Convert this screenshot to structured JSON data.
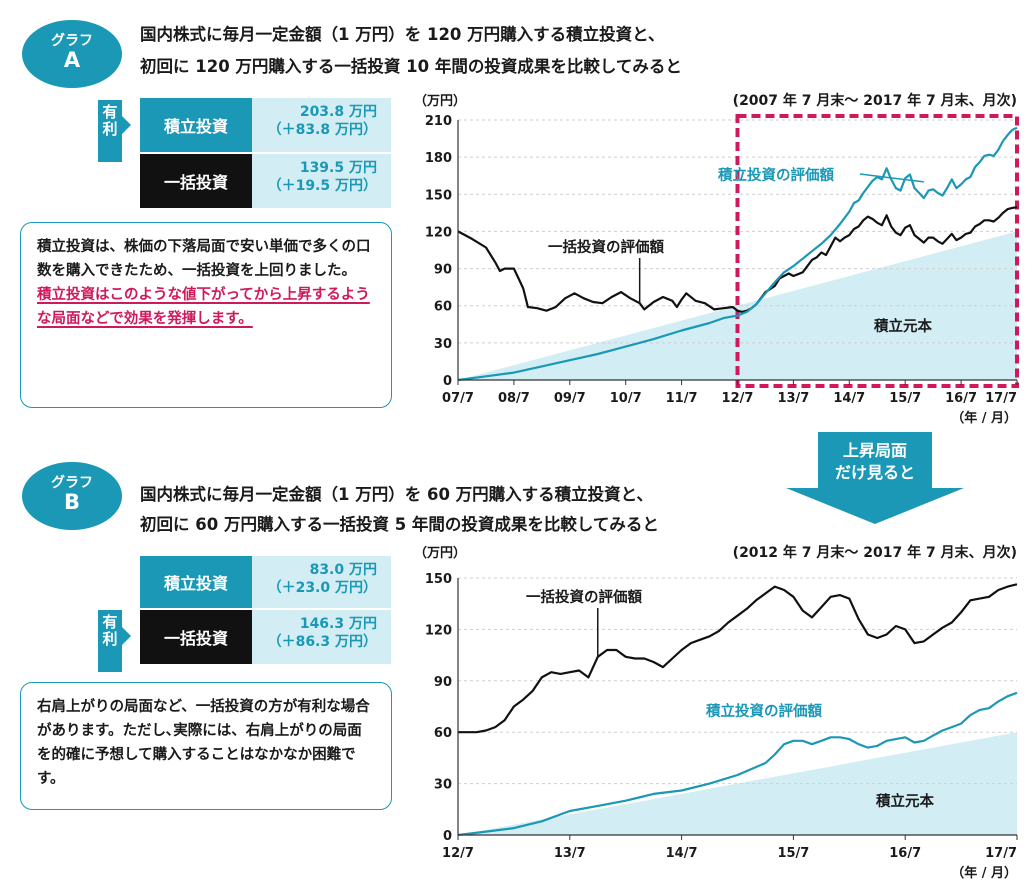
{
  "graph_a": {
    "badge_top": "グラフ",
    "badge_letter": "A",
    "heading_line1": "国内株式に毎月一定金額（1 万円）を 120 万円購入する積立投資と、",
    "heading_line2": "初回に 120 万円購入する一括投資 10 年間の投資成果を比較してみると",
    "advantage_label": "有利",
    "rows": [
      {
        "label": "積立投資",
        "value": "203.8 万円",
        "gain": "（＋83.8 万円）"
      },
      {
        "label": "一括投資",
        "value": "139.5 万円",
        "gain": "（＋19.5 万円）"
      }
    ],
    "note_plain": "積立投資は、株価の下落局面で安い単価で多くの口数を購入できたため、一括投資を上回りました。",
    "note_highlight": "積立投資はこのような値下がってから上昇するような局面などで効果を発揮します。"
  },
  "graph_b": {
    "badge_top": "グラフ",
    "badge_letter": "B",
    "heading_line1": "国内株式に毎月一定金額（1 万円）を 60 万円購入する積立投資と、",
    "heading_line2": "初回に 60 万円購入する一括投資 5 年間の投資成果を比較してみると",
    "advantage_label": "有利",
    "rows": [
      {
        "label": "積立投資",
        "value": "83.0 万円",
        "gain": "（＋23.0 万円）"
      },
      {
        "label": "一括投資",
        "value": "146.3 万円",
        "gain": "（＋86.3 万円）"
      }
    ],
    "note_text": "右肩上がりの局面など、一括投資の方が有利な場合があります。ただし､実際には、右肩上がりの局面を的確に予想して購入することはなかなか困難です。"
  },
  "transition": {
    "line1": "上昇局面",
    "line2": "だけ見ると"
  },
  "colors": {
    "accent": "#1a98b6",
    "highlight": "#d0195c",
    "area": "#d2edf3",
    "lump": "#111111"
  },
  "chart_data": [
    {
      "type": "line",
      "period": "(2007 年 7 月末～ 2017 年 7 月末、月次)",
      "ylabel": "（万円）",
      "xunit": "（年 / 月）",
      "ylim": [
        0,
        210
      ],
      "yticks": [
        0,
        30,
        60,
        90,
        120,
        150,
        180,
        210
      ],
      "xlim": [
        0,
        120
      ],
      "categories": [
        "07/7",
        "08/7",
        "09/7",
        "10/7",
        "11/7",
        "12/7",
        "13/7",
        "14/7",
        "15/7",
        "16/7",
        "17/7"
      ],
      "highlight_range": [
        60,
        120
      ],
      "annotations": {
        "lump": "一括投資の評価額",
        "dca": "積立投資の評価額",
        "principal": "積立元本"
      },
      "series": [
        {
          "name": "一括投資の評価額",
          "points": [
            [
              0,
              120
            ],
            [
              3,
              114
            ],
            [
              6,
              107
            ],
            [
              8,
              95
            ],
            [
              9,
              88
            ],
            [
              10,
              90
            ],
            [
              12,
              90
            ],
            [
              13,
              82
            ],
            [
              14,
              74
            ],
            [
              15,
              59
            ],
            [
              17,
              58
            ],
            [
              19,
              56
            ],
            [
              21,
              59
            ],
            [
              23,
              66
            ],
            [
              25,
              70
            ],
            [
              27,
              66
            ],
            [
              29,
              63
            ],
            [
              31,
              62
            ],
            [
              33,
              67
            ],
            [
              35,
              71
            ],
            [
              37,
              66
            ],
            [
              39,
              62
            ],
            [
              40,
              57
            ],
            [
              42,
              63
            ],
            [
              44,
              67
            ],
            [
              46,
              64
            ],
            [
              47,
              59
            ],
            [
              48,
              65
            ],
            [
              49,
              70
            ],
            [
              51,
              64
            ],
            [
              53,
              62
            ],
            [
              55,
              57
            ],
            [
              57,
              58
            ],
            [
              59,
              59
            ],
            [
              60,
              56
            ],
            [
              61,
              55
            ],
            [
              62,
              56
            ],
            [
              63,
              58
            ],
            [
              64,
              61
            ],
            [
              65,
              66
            ],
            [
              66,
              71
            ],
            [
              68,
              76
            ],
            [
              69,
              82
            ],
            [
              71,
              86
            ],
            [
              72,
              84
            ],
            [
              74,
              87
            ],
            [
              75,
              92
            ],
            [
              76,
              97
            ],
            [
              77,
              99
            ],
            [
              78,
              103
            ],
            [
              79,
              101
            ],
            [
              80,
              108
            ],
            [
              81,
              115
            ],
            [
              82,
              112
            ],
            [
              83,
              115
            ],
            [
              84,
              117
            ],
            [
              85,
              122
            ],
            [
              86,
              124
            ],
            [
              87,
              129
            ],
            [
              88,
              132
            ],
            [
              89,
              130
            ],
            [
              90,
              127
            ],
            [
              91,
              125
            ],
            [
              92,
              133
            ],
            [
              93,
              124
            ],
            [
              94,
              119
            ],
            [
              95,
              117
            ],
            [
              96,
              123
            ],
            [
              97,
              125
            ],
            [
              98,
              117
            ],
            [
              99,
              114
            ],
            [
              100,
              111
            ],
            [
              101,
              115
            ],
            [
              102,
              115
            ],
            [
              103,
              112
            ],
            [
              104,
              110
            ],
            [
              105,
              114
            ],
            [
              106,
              118
            ],
            [
              107,
              113
            ],
            [
              108,
              115
            ],
            [
              109,
              118
            ],
            [
              110,
              119
            ],
            [
              111,
              124
            ],
            [
              112,
              126
            ],
            [
              113,
              129
            ],
            [
              114,
              129
            ],
            [
              115,
              128
            ],
            [
              116,
              131
            ],
            [
              117,
              135
            ],
            [
              118,
              138
            ],
            [
              119,
              139
            ],
            [
              120,
              139.5
            ]
          ]
        },
        {
          "name": "積立投資の評価額",
          "points": [
            [
              0,
              0
            ],
            [
              6,
              3
            ],
            [
              12,
              6
            ],
            [
              18,
              11
            ],
            [
              24,
              16
            ],
            [
              30,
              21
            ],
            [
              36,
              27
            ],
            [
              42,
              33
            ],
            [
              48,
              40
            ],
            [
              54,
              46
            ],
            [
              57,
              50
            ],
            [
              60,
              52
            ],
            [
              62,
              55
            ],
            [
              64,
              61
            ],
            [
              66,
              70
            ],
            [
              68,
              79
            ],
            [
              70,
              87
            ],
            [
              72,
              92
            ],
            [
              74,
              98
            ],
            [
              76,
              104
            ],
            [
              78,
              110
            ],
            [
              80,
              117
            ],
            [
              82,
              126
            ],
            [
              84,
              136
            ],
            [
              85,
              143
            ],
            [
              86,
              145
            ],
            [
              87,
              151
            ],
            [
              88,
              156
            ],
            [
              89,
              161
            ],
            [
              90,
              164
            ],
            [
              91,
              162
            ],
            [
              92,
              171
            ],
            [
              93,
              162
            ],
            [
              94,
              155
            ],
            [
              95,
              153
            ],
            [
              96,
              163
            ],
            [
              97,
              166
            ],
            [
              98,
              155
            ],
            [
              99,
              151
            ],
            [
              100,
              147
            ],
            [
              101,
              153
            ],
            [
              102,
              154
            ],
            [
              103,
              151
            ],
            [
              104,
              149
            ],
            [
              105,
              155
            ],
            [
              106,
              162
            ],
            [
              107,
              155
            ],
            [
              108,
              158
            ],
            [
              109,
              162
            ],
            [
              110,
              164
            ],
            [
              111,
              172
            ],
            [
              112,
              176
            ],
            [
              113,
              181
            ],
            [
              114,
              182
            ],
            [
              115,
              181
            ],
            [
              116,
              186
            ],
            [
              117,
              193
            ],
            [
              118,
              198
            ],
            [
              119,
              202
            ],
            [
              120,
              203.8
            ]
          ]
        },
        {
          "name": "積立元本",
          "points": [
            [
              0,
              0
            ],
            [
              120,
              120
            ]
          ]
        }
      ]
    },
    {
      "type": "line",
      "period": "(2012 年 7 月末～ 2017 年 7 月末、月次)",
      "ylabel": "（万円）",
      "xunit": "（年 / 月）",
      "ylim": [
        0,
        150
      ],
      "yticks": [
        0,
        30,
        60,
        90,
        120,
        150
      ],
      "xlim": [
        0,
        60
      ],
      "categories": [
        "12/7",
        "13/7",
        "14/7",
        "15/7",
        "16/7",
        "17/7"
      ],
      "annotations": {
        "lump": "一括投資の評価額",
        "dca": "積立投資の評価額",
        "principal": "積立元本"
      },
      "series": [
        {
          "name": "一括投資の評価額",
          "points": [
            [
              0,
              60
            ],
            [
              2,
              60
            ],
            [
              3,
              61
            ],
            [
              4,
              63
            ],
            [
              5,
              67
            ],
            [
              6,
              75
            ],
            [
              7,
              79
            ],
            [
              8,
              84
            ],
            [
              9,
              92
            ],
            [
              10,
              95
            ],
            [
              11,
              94
            ],
            [
              12,
              95
            ],
            [
              13,
              96
            ],
            [
              14,
              92
            ],
            [
              15,
              104
            ],
            [
              16,
              108
            ],
            [
              17,
              108
            ],
            [
              18,
              104
            ],
            [
              19,
              103
            ],
            [
              20,
              103
            ],
            [
              21,
              101
            ],
            [
              22,
              98
            ],
            [
              23,
              103
            ],
            [
              24,
              108
            ],
            [
              25,
              112
            ],
            [
              26,
              114
            ],
            [
              27,
              116
            ],
            [
              28,
              119
            ],
            [
              29,
              124
            ],
            [
              30,
              128
            ],
            [
              31,
              132
            ],
            [
              32,
              137
            ],
            [
              33,
              141
            ],
            [
              34,
              145
            ],
            [
              35,
              143
            ],
            [
              36,
              139
            ],
            [
              37,
              131
            ],
            [
              38,
              127
            ],
            [
              39,
              133
            ],
            [
              40,
              139
            ],
            [
              41,
              140
            ],
            [
              42,
              138
            ],
            [
              43,
              126
            ],
            [
              44,
              117
            ],
            [
              45,
              115
            ],
            [
              46,
              117
            ],
            [
              47,
              122
            ],
            [
              48,
              120
            ],
            [
              49,
              112
            ],
            [
              50,
              113
            ],
            [
              51,
              117
            ],
            [
              52,
              121
            ],
            [
              53,
              124
            ],
            [
              54,
              130
            ],
            [
              55,
              137
            ],
            [
              56,
              138
            ],
            [
              57,
              139
            ],
            [
              58,
              143
            ],
            [
              59,
              145
            ],
            [
              60,
              146.3
            ]
          ]
        },
        {
          "name": "積立投資の評価額",
          "points": [
            [
              0,
              0
            ],
            [
              3,
              2
            ],
            [
              6,
              4
            ],
            [
              9,
              8
            ],
            [
              12,
              14
            ],
            [
              15,
              17
            ],
            [
              18,
              20
            ],
            [
              21,
              24
            ],
            [
              24,
              26
            ],
            [
              27,
              30
            ],
            [
              30,
              35
            ],
            [
              33,
              42
            ],
            [
              34,
              47
            ],
            [
              35,
              53
            ],
            [
              36,
              55
            ],
            [
              37,
              55
            ],
            [
              38,
              53
            ],
            [
              39,
              55
            ],
            [
              40,
              57
            ],
            [
              41,
              57
            ],
            [
              42,
              56
            ],
            [
              43,
              53
            ],
            [
              44,
              51
            ],
            [
              45,
              52
            ],
            [
              46,
              55
            ],
            [
              47,
              56
            ],
            [
              48,
              57
            ],
            [
              49,
              54
            ],
            [
              50,
              55
            ],
            [
              51,
              58
            ],
            [
              52,
              61
            ],
            [
              53,
              63
            ],
            [
              54,
              65
            ],
            [
              55,
              70
            ],
            [
              56,
              73
            ],
            [
              57,
              74
            ],
            [
              58,
              78
            ],
            [
              59,
              81
            ],
            [
              60,
              83
            ]
          ]
        },
        {
          "name": "積立元本",
          "points": [
            [
              0,
              0
            ],
            [
              60,
              60
            ]
          ]
        }
      ]
    }
  ]
}
